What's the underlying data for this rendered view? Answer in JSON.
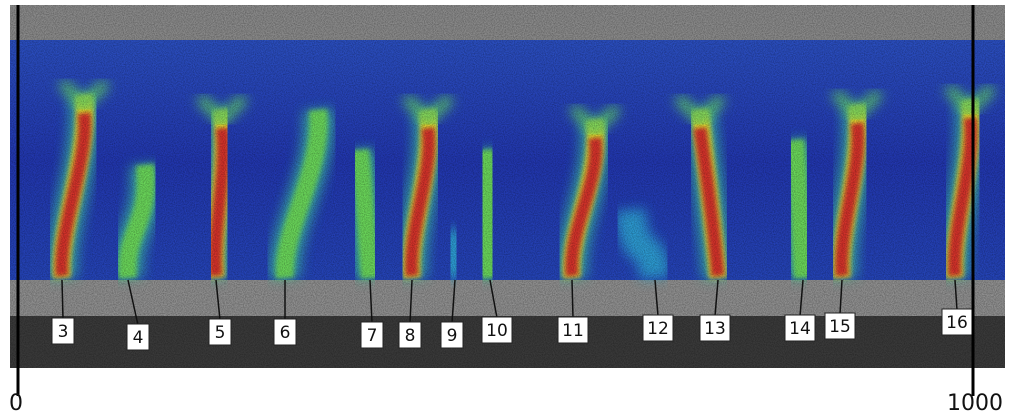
{
  "crack_labels": [
    "3",
    "4",
    "5",
    "6",
    "7",
    "8",
    "9",
    "10",
    "11",
    "12",
    "13",
    "14",
    "15",
    "16"
  ],
  "scale": {
    "start": "0",
    "end": "1000"
  }
}
